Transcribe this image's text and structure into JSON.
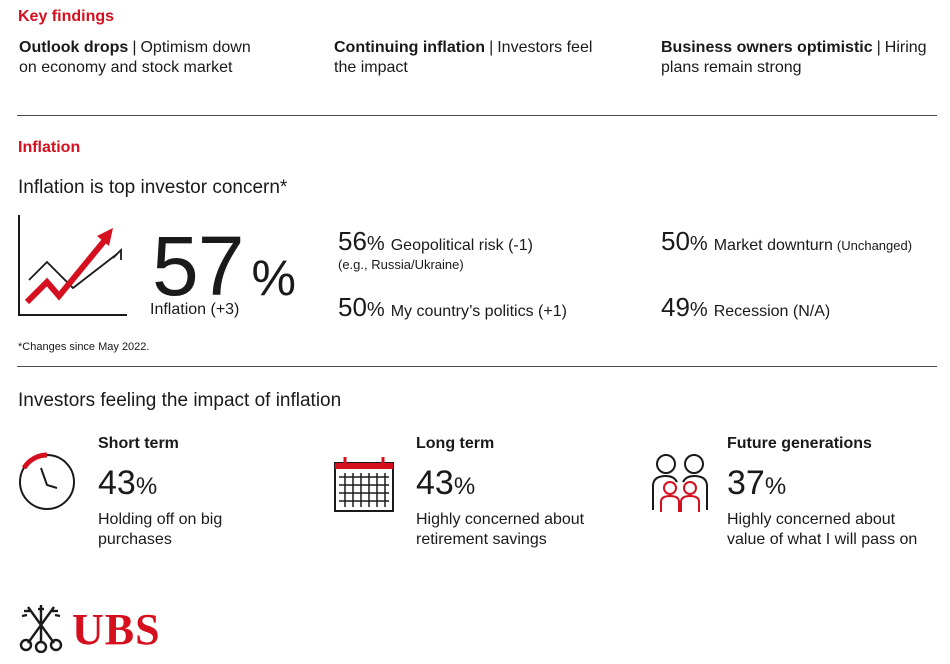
{
  "key_findings": {
    "title": "Key findings",
    "items": [
      {
        "bold": "Outlook drops",
        "sep": "|",
        "rest1": "Optimism down",
        "rest2": "on economy and stock market"
      },
      {
        "bold": "Continuing inflation",
        "sep": "|",
        "rest1": "Investors feel",
        "rest2": "the impact"
      },
      {
        "bold": "Business owners optimistic",
        "sep": "|",
        "rest1": "Hiring",
        "rest2": "plans remain strong"
      }
    ]
  },
  "inflation": {
    "title": "Inflation",
    "heading": "Inflation is top investor concern*",
    "main_value": "57",
    "main_pct": "%",
    "main_label": "Inflation (+3)",
    "stats": [
      {
        "value": "56",
        "pct": "%",
        "label": "Geopolitical risk (-1)",
        "sub": "(e.g., Russia/Ukraine)"
      },
      {
        "value": "50",
        "pct": "%",
        "label": "Market downturn",
        "label_small": "(Unchanged)"
      },
      {
        "value": "50",
        "pct": "%",
        "label": "My country’s politics (+1)"
      },
      {
        "value": "49",
        "pct": "%",
        "label": "Recession (N/A)"
      }
    ],
    "footnote": "*Changes since May 2022.",
    "icon": "trend-up-chart-icon"
  },
  "impact": {
    "heading": "Investors feeling the impact of inflation",
    "items": [
      {
        "head": "Short term",
        "value": "43",
        "pct": "%",
        "text1": "Holding off on big",
        "text2": "purchases",
        "icon": "clock-icon"
      },
      {
        "head": "Long term",
        "value": "43",
        "pct": "%",
        "text1": "Highly concerned about",
        "text2": "retirement savings",
        "icon": "calendar-icon"
      },
      {
        "head": "Future generations",
        "value": "37",
        "pct": "%",
        "text1": "Highly concerned about",
        "text2": "value of what I will pass on",
        "icon": "family-icon"
      }
    ]
  },
  "brand": {
    "name": "UBS",
    "icon": "ubs-keys-logo-icon",
    "color": "#d50f1e"
  }
}
